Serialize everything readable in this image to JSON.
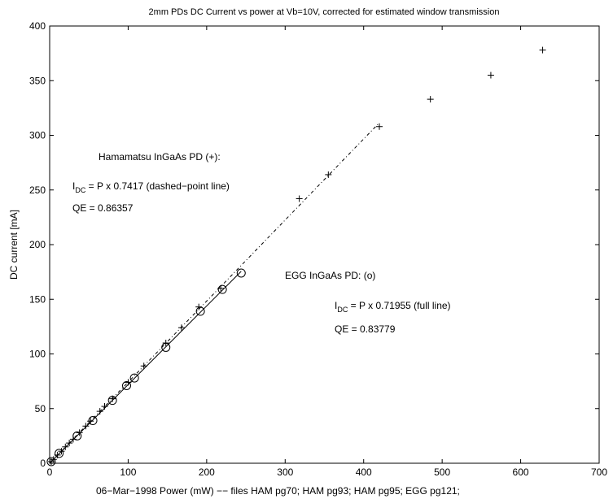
{
  "chart_data": {
    "type": "scatter",
    "title": "2mm PDs DC Current vs power at Vb=10V, corrected for estimated window transmission",
    "xlabel": "06−Mar−1998  Power (mW)  −− files   HAM pg70; HAM pg93; HAM pg95; EGG pg121;",
    "ylabel": "DC current [mA]",
    "xlim": [
      0,
      700
    ],
    "ylim": [
      0,
      400
    ],
    "xticks": [
      0,
      100,
      200,
      300,
      400,
      500,
      600,
      700
    ],
    "yticks": [
      0,
      50,
      100,
      150,
      200,
      250,
      300,
      350,
      400
    ],
    "grid": false,
    "series": [
      {
        "marker": "+",
        "x": [
          2,
          5,
          10,
          15,
          20,
          25,
          30,
          38,
          46,
          52,
          64,
          70,
          80,
          100,
          120,
          148,
          168,
          190,
          218,
          318,
          355,
          420,
          485,
          562,
          628
        ],
        "y": [
          1.5,
          3.5,
          7.5,
          11,
          15,
          18.5,
          22,
          28,
          34,
          38.5,
          47.5,
          52,
          59,
          74,
          89,
          110,
          124,
          143,
          160,
          242,
          264,
          308,
          333,
          355,
          378
        ]
      },
      {
        "marker": "o",
        "x": [
          2,
          12,
          35,
          55,
          80,
          98,
          108,
          148,
          192,
          220,
          244
        ],
        "y": [
          1.5,
          9,
          25,
          39,
          57.5,
          71,
          78,
          106,
          139,
          159,
          174
        ]
      }
    ],
    "fits": [
      {
        "style": "dashed-point",
        "slope": 0.7417,
        "x_range": [
          0,
          420
        ]
      },
      {
        "style": "full",
        "slope": 0.71955,
        "x_range": [
          0,
          244
        ]
      }
    ],
    "annotations": {
      "ham_title": "Hamamatsu InGaAs PD (+):",
      "ham_eq_base": "I",
      "ham_eq_sub": "DC",
      "ham_eq_rest": " = P x 0.7417 (dashed−point line)",
      "ham_qe": "QE = 0.86357",
      "egg_title": "EGG InGaAs PD: (o)",
      "egg_eq_base": "I",
      "egg_eq_sub": "DC",
      "egg_eq_rest": " = P x 0.71955 (full line)",
      "egg_qe": "QE = 0.83779"
    }
  }
}
